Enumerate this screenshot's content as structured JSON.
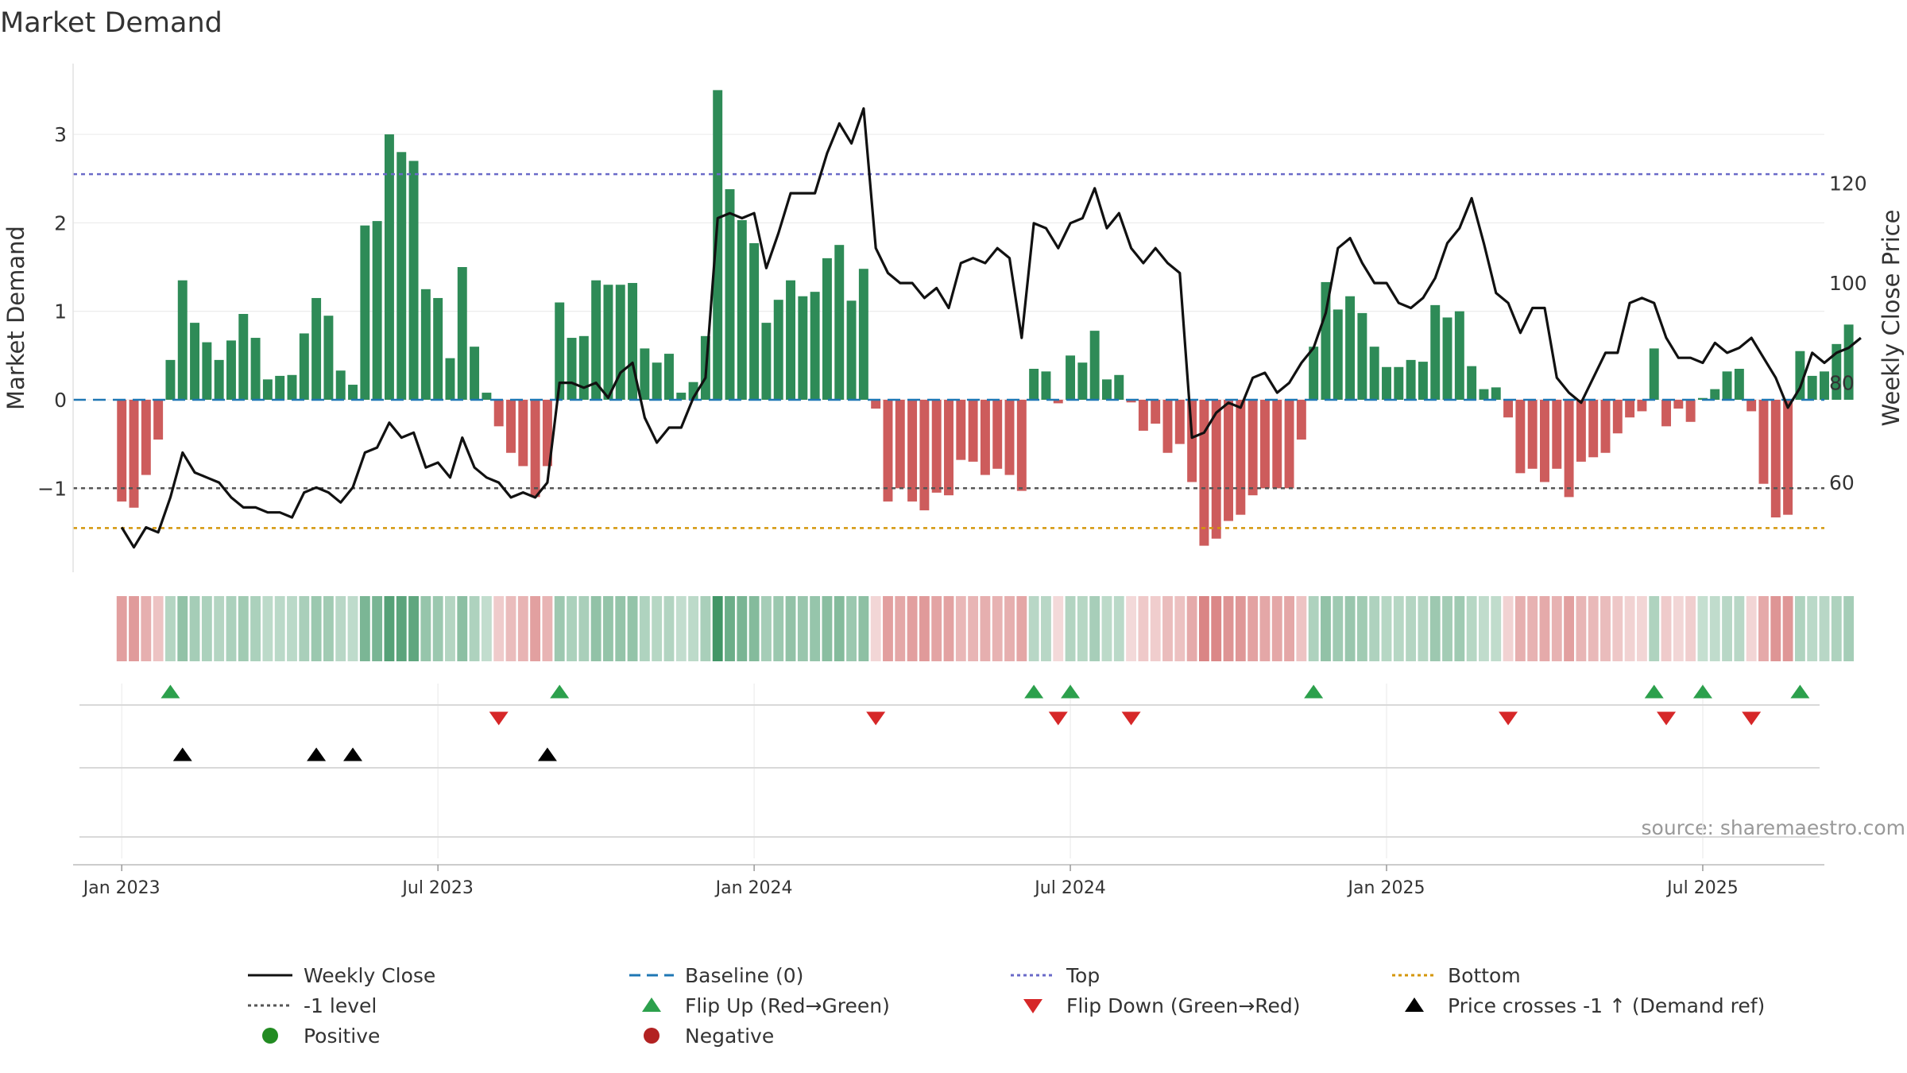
{
  "chart_data": {
    "type": "bar",
    "title": "Market Demand",
    "ylabel_left": "Market Demand",
    "ylabel_right": "Weekly Close Price",
    "left_ylim": [
      -1.95,
      3.8
    ],
    "left_yticks": [
      -1,
      0,
      1,
      2,
      3
    ],
    "left_ytick_labels": [
      "−1",
      "0",
      "1",
      "2",
      "3"
    ],
    "right_ylim": [
      42,
      144
    ],
    "right_yticks": [
      60,
      80,
      100,
      120
    ],
    "right_ytick_labels": [
      "60",
      "80",
      "100",
      "120"
    ],
    "x_range_weeks": [
      -4,
      140
    ],
    "xtick_weeks": [
      0,
      26,
      52,
      78,
      104,
      130
    ],
    "xtick_labels": [
      "Jan 2023",
      "Jul 2023",
      "Jan 2024",
      "Jul 2024",
      "Jan 2025",
      "Jul 2025"
    ],
    "reference_lines": {
      "top": 2.55,
      "minus_one_level": -1,
      "bottom": -1.45,
      "baseline": 0
    },
    "demand_values": [
      -1.15,
      -1.22,
      -0.85,
      -0.45,
      0.45,
      1.35,
      0.87,
      0.65,
      0.45,
      0.67,
      0.97,
      0.7,
      0.23,
      0.27,
      0.28,
      0.75,
      1.15,
      0.95,
      0.33,
      0.17,
      1.97,
      2.02,
      3.0,
      2.8,
      2.7,
      1.25,
      1.15,
      0.47,
      1.5,
      0.6,
      0.08,
      -0.3,
      -0.6,
      -0.75,
      -1.1,
      -0.75,
      1.1,
      0.7,
      0.72,
      1.35,
      1.3,
      1.3,
      1.32,
      0.58,
      0.42,
      0.52,
      0.08,
      0.2,
      0.72,
      3.5,
      2.38,
      2.03,
      1.77,
      0.87,
      1.13,
      1.35,
      1.17,
      1.22,
      1.6,
      1.75,
      1.12,
      1.48,
      -0.1,
      -1.15,
      -1.0,
      -1.15,
      -1.25,
      -1.05,
      -1.08,
      -0.68,
      -0.7,
      -0.85,
      -0.78,
      -0.85,
      -1.03,
      0.35,
      0.32,
      -0.04,
      0.5,
      0.42,
      0.78,
      0.23,
      0.28,
      -0.03,
      -0.35,
      -0.27,
      -0.6,
      -0.5,
      -0.93,
      -1.65,
      -1.57,
      -1.37,
      -1.3,
      -1.08,
      -1.0,
      -1.0,
      -1.0,
      -0.45,
      0.6,
      1.33,
      1.02,
      1.17,
      0.98,
      0.6,
      0.37,
      0.37,
      0.45,
      0.43,
      1.07,
      0.93,
      1.0,
      0.38,
      0.12,
      0.14,
      -0.2,
      -0.83,
      -0.78,
      -0.93,
      -0.78,
      -1.1,
      -0.7,
      -0.65,
      -0.6,
      -0.38,
      -0.2,
      -0.13,
      0.58,
      -0.3,
      -0.1,
      -0.25,
      0.02,
      0.12,
      0.32,
      0.35,
      -0.13,
      -0.95,
      -1.33,
      -1.3,
      0.55,
      0.27,
      0.32,
      0.63,
      0.85
    ],
    "close_values": [
      51,
      47,
      51,
      50,
      57,
      66,
      62,
      61,
      60,
      57,
      55,
      55,
      54,
      54,
      53,
      58,
      59,
      58,
      56,
      59,
      66,
      67,
      72,
      69,
      70,
      63,
      64,
      61,
      69,
      63,
      61,
      60,
      57,
      58,
      57,
      60,
      80,
      80,
      79,
      80,
      77,
      82,
      84,
      73,
      68,
      71,
      71,
      77,
      81,
      113,
      114,
      113,
      114,
      103,
      110,
      118,
      118,
      118,
      126,
      132,
      128,
      135,
      107,
      102,
      100,
      100,
      97,
      99,
      95,
      104,
      105,
      104,
      107,
      105,
      89,
      112,
      111,
      107,
      112,
      113,
      119,
      111,
      114,
      107,
      104,
      107,
      104,
      102,
      69,
      70,
      74,
      76,
      75,
      81,
      82,
      78,
      80,
      84,
      87,
      94,
      107,
      109,
      104,
      100,
      100,
      96,
      95,
      97,
      101,
      108,
      111,
      117,
      108,
      98,
      96,
      90,
      95,
      95,
      81,
      78,
      76,
      81,
      86,
      86,
      96,
      97,
      96,
      89,
      85,
      85,
      84,
      88,
      86,
      87,
      89,
      85,
      81,
      75,
      79,
      86,
      84,
      86,
      87,
      89
    ],
    "legend": [
      {
        "key": "weekly_close",
        "label": "Weekly Close"
      },
      {
        "key": "baseline",
        "label": "Baseline (0)"
      },
      {
        "key": "top",
        "label": "Top"
      },
      {
        "key": "bottom",
        "label": "Bottom"
      },
      {
        "key": "minus_one",
        "label": "-1 level"
      },
      {
        "key": "flip_up",
        "label": "Flip Up (Red→Green)"
      },
      {
        "key": "flip_down",
        "label": "Flip Down (Green→Red)"
      },
      {
        "key": "price_cross",
        "label": "Price crosses -1 ↑ (Demand ref)"
      },
      {
        "key": "positive",
        "label": "Positive"
      },
      {
        "key": "negative",
        "label": "Negative"
      }
    ],
    "annotation": "source: sharemaestro.com",
    "colors": {
      "positive_bar": "#2e8b57",
      "negative_bar": "#cd5c5c",
      "close_line": "#111111",
      "top_line": "#6a6ac8",
      "minus_one_line": "#555555",
      "bottom_line": "#d4960a",
      "baseline": "#1f77b4",
      "flip_up": "#2ca04c",
      "flip_down": "#d62728",
      "price_cross": "#000000",
      "positive_dot": "#228b22",
      "negative_dot": "#b22222"
    }
  }
}
